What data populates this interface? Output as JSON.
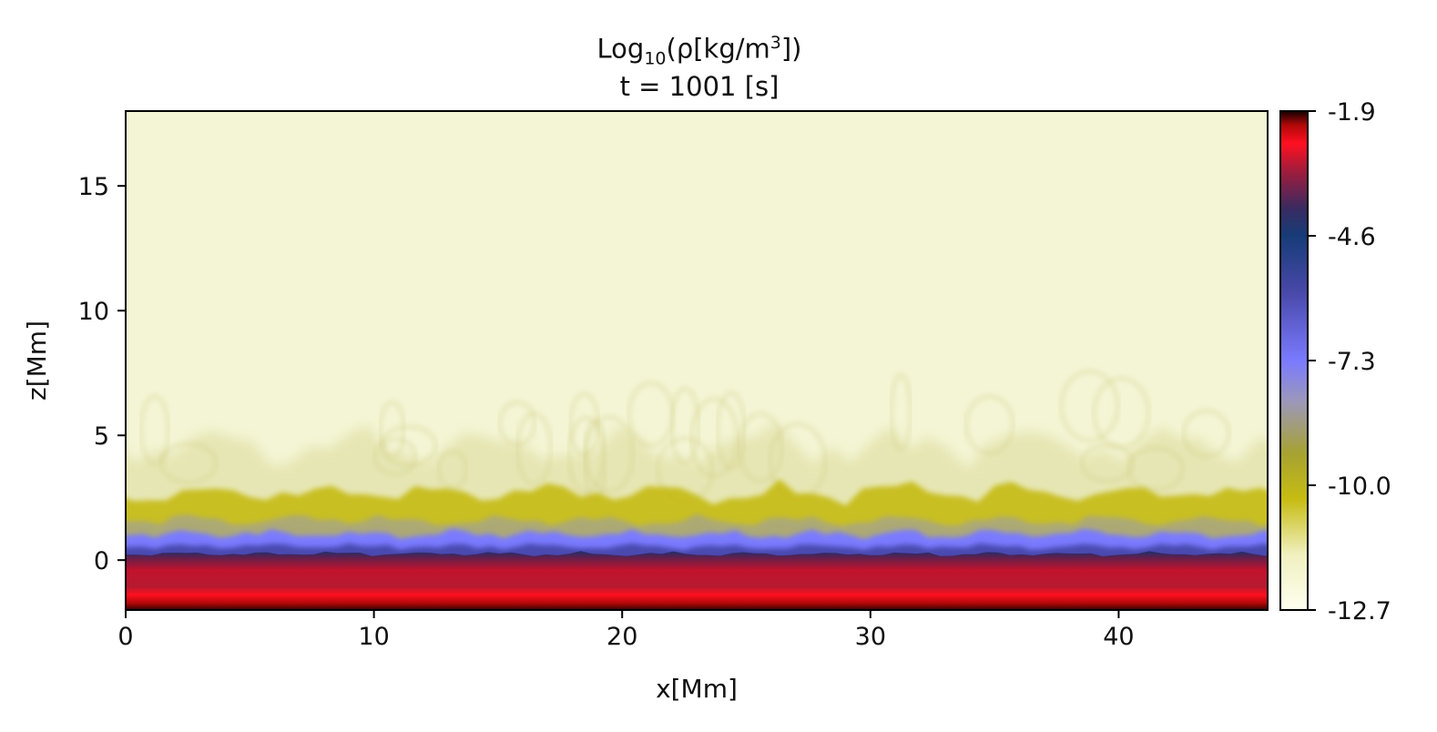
{
  "chart_data": {
    "type": "heatmap",
    "title": "Log₁₀(ρ[kg/m³])",
    "title_parts": {
      "pre": "Log",
      "sub": "10",
      "mid": "(ρ[kg/m",
      "sup": "3",
      "post": "])"
    },
    "subtitle": "t = 1001 [s]",
    "xlabel": "x[Mm]",
    "ylabel": "z[Mm]",
    "xlim": [
      0,
      46
    ],
    "ylim": [
      -2,
      18
    ],
    "xticks": [
      0,
      10,
      20,
      30,
      40
    ],
    "yticks": [
      0,
      5,
      10,
      15
    ],
    "xtick_labels": [
      "0",
      "10",
      "20",
      "30",
      "40"
    ],
    "ytick_labels": [
      "0",
      "5",
      "10",
      "15"
    ],
    "colorbar": {
      "range": [
        -12.7,
        -1.9
      ],
      "ticks": [
        -1.9,
        -4.6,
        -7.3,
        -10.0,
        -12.7
      ],
      "tick_labels": [
        "-1.9",
        "-4.6",
        "-7.3",
        "-10.0",
        "-12.7"
      ],
      "stops": [
        {
          "value": -12.7,
          "color": "#fffff0"
        },
        {
          "value": -11.5,
          "color": "#f0f0c0"
        },
        {
          "value": -10.3,
          "color": "#c6bc12"
        },
        {
          "value": -9.3,
          "color": "#a6a232"
        },
        {
          "value": -8.2,
          "color": "#9c98b8"
        },
        {
          "value": -7.3,
          "color": "#7a7aff"
        },
        {
          "value": -5.8,
          "color": "#4848a8"
        },
        {
          "value": -4.6,
          "color": "#163c78"
        },
        {
          "value": -4.0,
          "color": "#3a2a60"
        },
        {
          "value": -3.2,
          "color": "#a01c3c"
        },
        {
          "value": -2.6,
          "color": "#ff1020"
        },
        {
          "value": -2.2,
          "color": "#b00808"
        },
        {
          "value": -1.9,
          "color": "#100000"
        }
      ]
    },
    "field_colors": {
      "corona": "#f3f5d4",
      "plumes": "#dcda9a",
      "chromosphere": "#c6bc12",
      "transition": "#7a7aff",
      "deep_blue": "#1c2e6e",
      "photosphere": "#c4122c",
      "bright_red": "#ff1020",
      "bottom": "#100000"
    }
  }
}
